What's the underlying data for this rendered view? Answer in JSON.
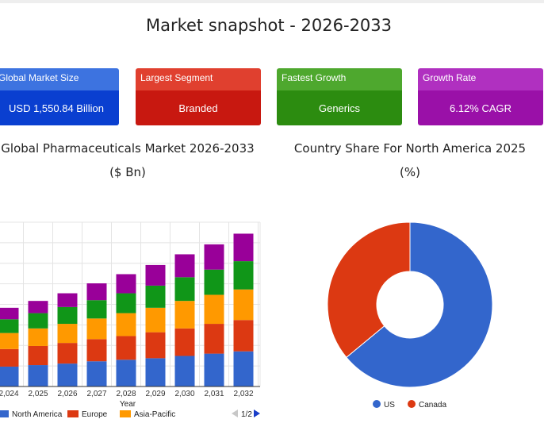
{
  "page": {
    "title": "Market snapshot - 2026-2033"
  },
  "cards": [
    {
      "label": "Global Market Size",
      "value": "USD 1,550.84 Billion",
      "label_color": "#3d73e0",
      "value_color": "#0a3fd0"
    },
    {
      "label": "Largest Segment",
      "value": "Branded",
      "label_color": "#e0402f",
      "value_color": "#c81810"
    },
    {
      "label": "Fastest Growth",
      "value": "Generics",
      "label_color": "#4ea82e",
      "value_color": "#2c8c10"
    },
    {
      "label": "Growth Rate",
      "value": "6.12% CAGR",
      "label_color": "#b030c0",
      "value_color": "#9a10a8"
    }
  ],
  "bar_chart": {
    "title": "Global Pharmaceuticals Market 2026-2033 ($ Bn)",
    "pager": "1/2"
  },
  "donut_chart": {
    "title": "Country Share For North America 2025 (%)"
  },
  "chart_data": [
    {
      "type": "bar",
      "stacked": true,
      "title": "Global Pharmaceuticals Market 2026-2033 ($ Bn)",
      "xlabel": "Year",
      "ylabel": "",
      "categories": [
        "2,024",
        "2,025",
        "2,026",
        "2,027",
        "2,028",
        "2,029",
        "2,030",
        "2,031",
        "2,032"
      ],
      "ylim": [
        0,
        2150
      ],
      "grid": true,
      "legend_position": "bottom",
      "series": [
        {
          "name": "North America",
          "color": "#3366cc",
          "values": [
            260,
            280,
            300,
            330,
            350,
            370,
            400,
            430,
            460
          ]
        },
        {
          "name": "Europe",
          "color": "#dc3912",
          "values": [
            230,
            250,
            270,
            290,
            310,
            340,
            360,
            390,
            410
          ]
        },
        {
          "name": "Asia-Pacific",
          "color": "#ff9900",
          "values": [
            210,
            230,
            250,
            270,
            300,
            320,
            360,
            380,
            400
          ]
        },
        {
          "color": "#109618",
          "values": [
            180,
            200,
            220,
            240,
            260,
            290,
            310,
            330,
            370
          ]
        },
        {
          "color": "#990099",
          "values": [
            150,
            160,
            180,
            220,
            250,
            270,
            300,
            330,
            360
          ]
        }
      ]
    },
    {
      "type": "pie",
      "donut": true,
      "title": "Country Share For North America 2025 (%)",
      "labels": [
        "US",
        "Canada"
      ],
      "values": [
        64,
        36
      ],
      "colors": [
        "#3366cc",
        "#dc3912"
      ],
      "legend_position": "bottom"
    }
  ]
}
